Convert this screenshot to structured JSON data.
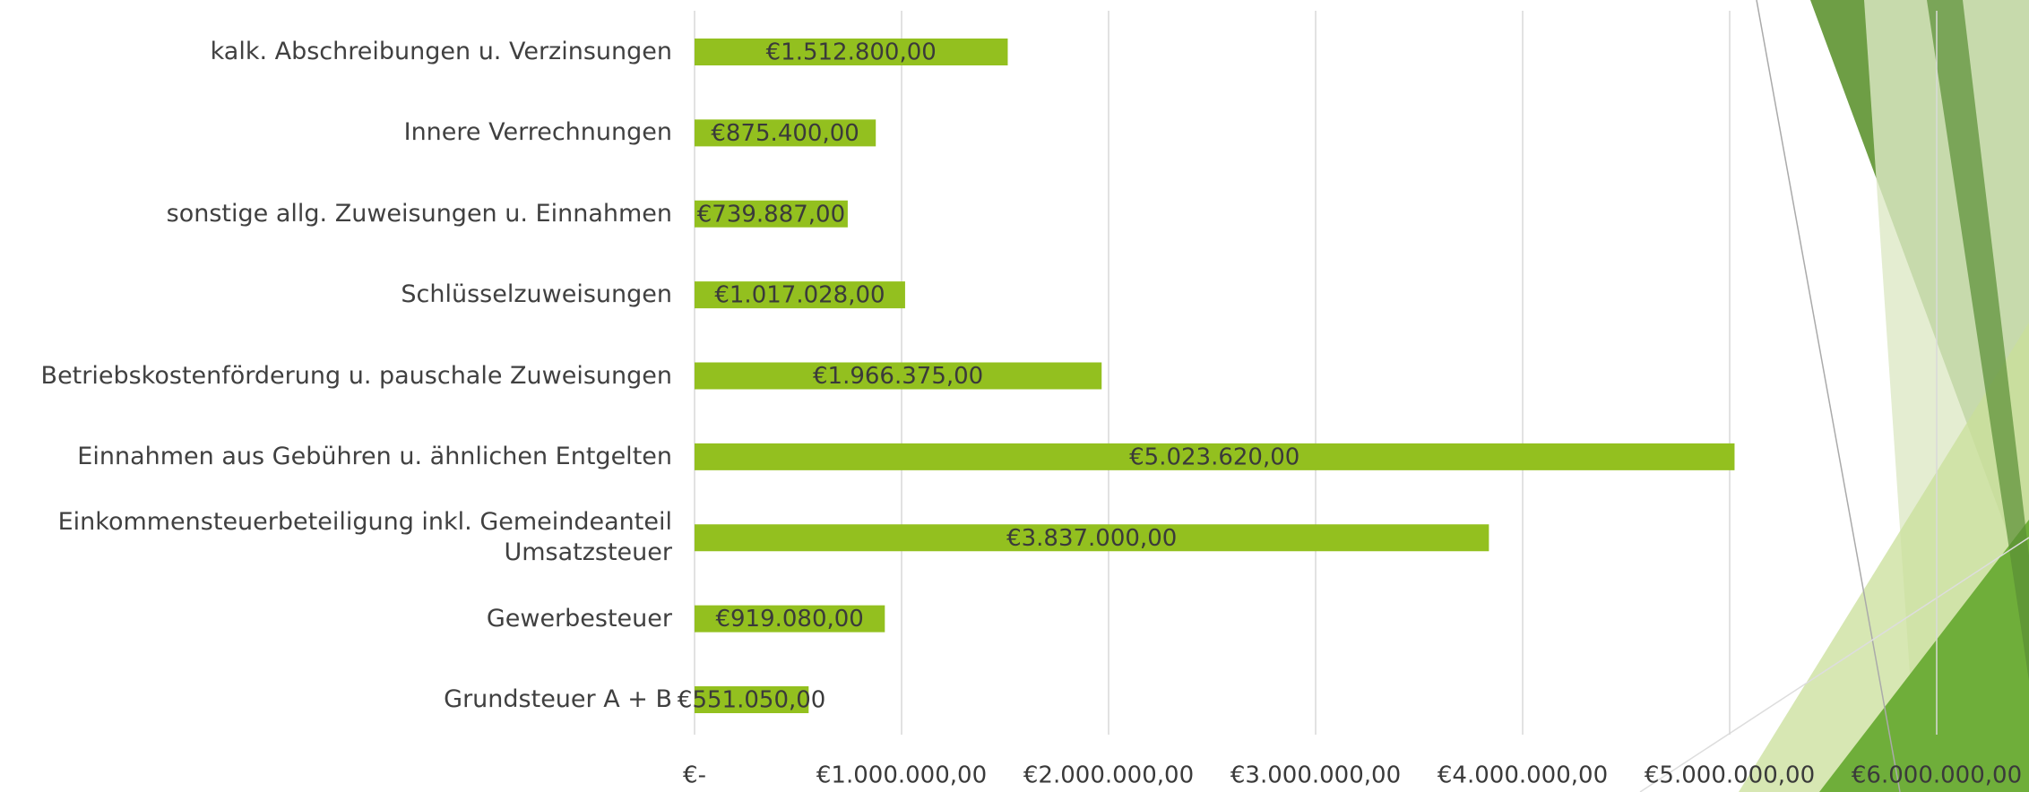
{
  "chart_data": {
    "type": "bar",
    "orientation": "horizontal",
    "categories": [
      "kalk. Abschreibungen u. Verzinsungen",
      "Innere Verrechnungen",
      "sonstige allg. Zuweisungen u. Einnahmen",
      "Schlüsselzuweisungen",
      "Betriebskostenförderung u. pauschale Zuweisungen",
      "Einnahmen aus Gebühren u. ähnlichen Entgelten",
      "Einkommensteuerbeteiligung inkl. Gemeindeanteil Umsatzsteuer",
      "Gewerbesteuer",
      "Grundsteuer A + B"
    ],
    "values": [
      1512800,
      875400,
      739887,
      1017028,
      1966375,
      5023620,
      3837000,
      919080,
      551050
    ],
    "value_labels": [
      "€1.512.800,00",
      "€875.400,00",
      "€739.887,00",
      "€1.017.028,00",
      "€1.966.375,00",
      "€5.023.620,00",
      "€3.837.000,00",
      "€919.080,00",
      "€551.050,00"
    ],
    "color": "#93c01f",
    "xlim": [
      0,
      6000000
    ],
    "xticks": [
      {
        "value": 0,
        "label": "€-"
      },
      {
        "value": 1000000,
        "label": "€1.000.000,00"
      },
      {
        "value": 2000000,
        "label": "€2.000.000,00"
      },
      {
        "value": 3000000,
        "label": "€3.000.000,00"
      },
      {
        "value": 4000000,
        "label": "€4.000.000,00"
      },
      {
        "value": 5000000,
        "label": "€5.000.000,00"
      },
      {
        "value": 6000000,
        "label": "€6.000.000,00"
      }
    ],
    "grid": true
  }
}
